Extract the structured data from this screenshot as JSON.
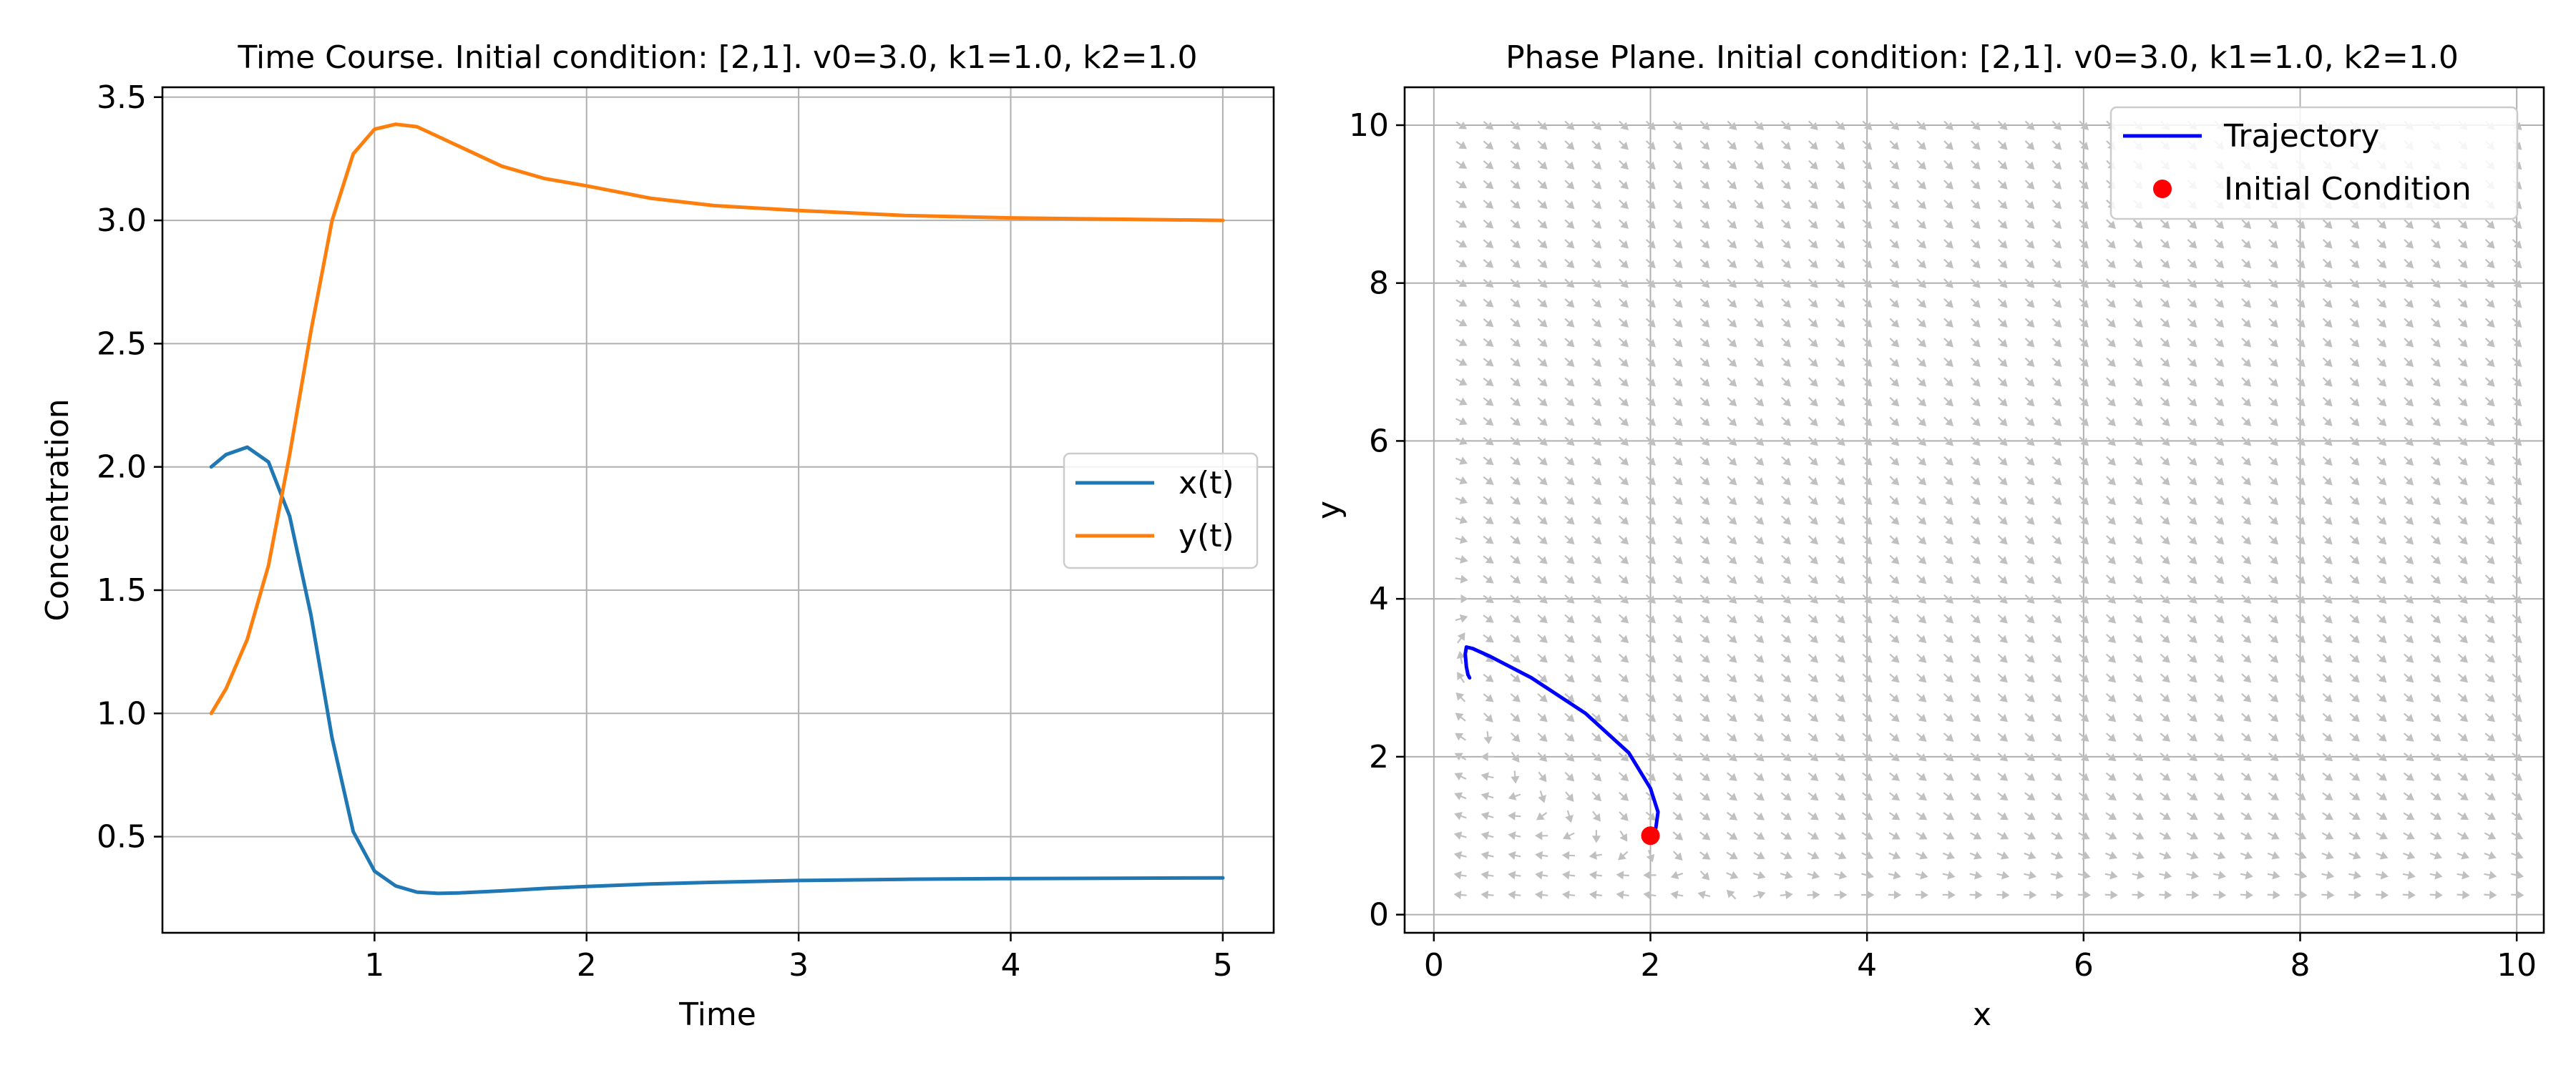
{
  "chart_data": [
    {
      "type": "line",
      "title": "Time Course. Initial condition: [2,1]. v0=3.0, k1=1.0, k2=1.0",
      "xlabel": "Time",
      "ylabel": "Concentration",
      "xlim": [
        -0.0,
        5.24
      ],
      "ylim": [
        0.11,
        3.54
      ],
      "xticks": [
        1,
        2,
        3,
        4,
        5
      ],
      "xtick_labels": [
        "1",
        "2",
        "3",
        "4",
        "5"
      ],
      "yticks": [
        0.5,
        1.0,
        1.5,
        2.0,
        2.5,
        3.0,
        3.5
      ],
      "ytick_labels": [
        "0.5",
        "1.0",
        "1.5",
        "2.0",
        "2.5",
        "3.0",
        "3.5"
      ],
      "grid": true,
      "legend_position": "center-right",
      "x": [
        0.23,
        0.3,
        0.4,
        0.5,
        0.6,
        0.7,
        0.8,
        0.9,
        1.0,
        1.1,
        1.2,
        1.3,
        1.4,
        1.6,
        1.8,
        2.0,
        2.3,
        2.6,
        3.0,
        3.5,
        4.0,
        4.5,
        5.0
      ],
      "series": [
        {
          "name": "x(t)",
          "color": "#1f77b4",
          "values": [
            2.0,
            2.05,
            2.08,
            2.02,
            1.8,
            1.4,
            0.9,
            0.52,
            0.36,
            0.3,
            0.275,
            0.27,
            0.272,
            0.28,
            0.29,
            0.298,
            0.308,
            0.315,
            0.322,
            0.327,
            0.33,
            0.331,
            0.333
          ]
        },
        {
          "name": "y(t)",
          "color": "#ff7f0e",
          "values": [
            1.0,
            1.1,
            1.3,
            1.6,
            2.05,
            2.55,
            3.0,
            3.27,
            3.37,
            3.39,
            3.38,
            3.34,
            3.3,
            3.22,
            3.17,
            3.14,
            3.09,
            3.06,
            3.04,
            3.02,
            3.01,
            3.005,
            3.0
          ]
        }
      ]
    },
    {
      "type": "line",
      "title": "Phase Plane. Initial condition: [2,1]. v0=3.0, k1=1.0, k2=1.0",
      "xlabel": "x",
      "ylabel": "y",
      "xlim": [
        -0.27,
        10.25
      ],
      "ylim": [
        -0.23,
        10.48
      ],
      "xticks": [
        0,
        2,
        4,
        6,
        8,
        10
      ],
      "xtick_labels": [
        "0",
        "2",
        "4",
        "6",
        "8",
        "10"
      ],
      "yticks": [
        0,
        2,
        4,
        6,
        8,
        10
      ],
      "ytick_labels": [
        "0",
        "2",
        "4",
        "6",
        "8",
        "10"
      ],
      "grid": true,
      "legend_position": "top-right",
      "vector_field": {
        "x_range": [
          0.25,
          10.0
        ],
        "y_range": [
          0.25,
          10.0
        ],
        "grid_count": 40,
        "color": "#c0c0c0"
      },
      "series": [
        {
          "name": "Trajectory",
          "color": "#0000ff",
          "x": [
            2.0,
            2.05,
            2.07,
            2.0,
            1.8,
            1.4,
            0.9,
            0.52,
            0.36,
            0.3,
            0.29,
            0.3,
            0.315,
            0.33
          ],
          "y": [
            1.0,
            1.1,
            1.3,
            1.6,
            2.05,
            2.55,
            3.0,
            3.27,
            3.37,
            3.39,
            3.3,
            3.14,
            3.04,
            3.0
          ]
        },
        {
          "name": "Initial Condition",
          "color": "#ff0000",
          "x": [
            2.0
          ],
          "y": [
            1.0
          ],
          "marker": "dot"
        }
      ]
    }
  ]
}
